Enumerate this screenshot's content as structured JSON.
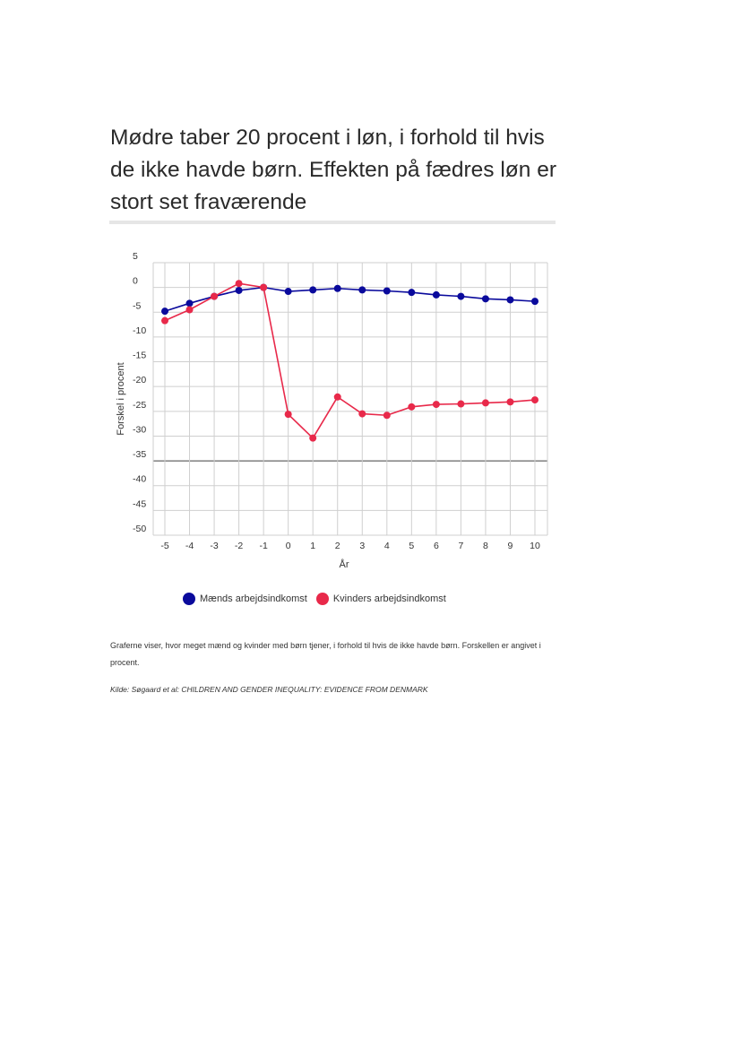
{
  "title": "Mødre taber 20 procent i løn, i forhold til hvis de ikke havde børn. Effekten på fædres løn er stort set fraværende",
  "caption": "Graferne viser, hvor meget mænd og kvinder med børn tjener, i forhold til hvis de ikke havde børn. Forskellen er angivet i procent.",
  "source": "Kilde: Søgaard et al: CHILDREN AND GENDER INEQUALITY: EVIDENCE FROM DENMARK",
  "colors": {
    "men": "#0a0a9c",
    "women": "#e8294a",
    "grid": "#cfcfcf",
    "axis": "#555555"
  },
  "chart_data": {
    "type": "line",
    "xlabel": "År",
    "ylabel": "Forskel i procent",
    "x": [
      -5,
      -4,
      -3,
      -2,
      -1,
      0,
      1,
      2,
      3,
      4,
      5,
      6,
      7,
      8,
      9,
      10
    ],
    "x_tick_labels": [
      "-5",
      "-4",
      "-3",
      "-2",
      "-1",
      "0",
      "1",
      "2",
      "3",
      "4",
      "5",
      "6",
      "7",
      "8",
      "9",
      "10"
    ],
    "y_tick_labels": [
      "5",
      "0",
      "-5",
      "-10",
      "-15",
      "-20",
      "-25",
      "-30",
      "-35",
      "-40",
      "-45",
      "-50"
    ],
    "y_ticks": [
      5,
      0,
      -5,
      -10,
      -15,
      -20,
      -25,
      -30,
      -35,
      -40,
      -45,
      -50
    ],
    "ylim": [
      -50,
      5
    ],
    "xlim": [
      -5,
      10
    ],
    "grid": true,
    "legend_position": "bottom",
    "series": [
      {
        "name": "Mænds arbejdsindkomst",
        "color": "#0a0a9c",
        "values": [
          -4.8,
          -3.2,
          -1.8,
          -0.6,
          0.0,
          -0.8,
          -0.5,
          -0.2,
          -0.5,
          -0.7,
          -1.0,
          -1.5,
          -1.8,
          -2.3,
          -2.5,
          -2.8
        ]
      },
      {
        "name": "Kvinders arbejdsindkomst",
        "color": "#e8294a",
        "values": [
          -6.7,
          -4.5,
          -1.8,
          0.8,
          0.0,
          -25.6,
          -30.4,
          -22.1,
          -25.5,
          -25.8,
          -24.1,
          -23.6,
          -23.5,
          -23.3,
          -23.1,
          -22.7
        ]
      }
    ]
  }
}
